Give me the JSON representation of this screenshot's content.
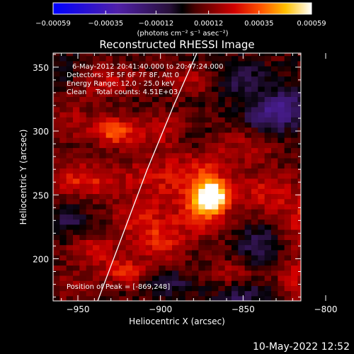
{
  "chart_data": {
    "type": "heatmap",
    "title": "Reconstructed RHESSI Image",
    "xlabel": "Heliocentric X (arcsec)",
    "ylabel": "Heliocentric Y (arcsec)",
    "xlim": [
      -965,
      -815
    ],
    "ylim": [
      167,
      361
    ],
    "xticks": [
      -950,
      -900,
      -850,
      -800
    ],
    "xtick_labels": [
      "−950",
      "−900",
      "−850",
      "−800"
    ],
    "yticks": [
      200,
      250,
      300,
      350
    ],
    "ytick_labels": [
      "200",
      "250",
      "300",
      "350"
    ],
    "colorbar": {
      "ticks": [
        -0.00059,
        -0.00035,
        -0.00012,
        0.00012,
        0.00035,
        0.00059
      ],
      "tick_labels": [
        "−0.00059",
        "−0.00035",
        "−0.00012",
        "0.00012",
        "0.00035",
        "0.00059"
      ],
      "range": [
        -0.00059,
        0.00059
      ],
      "unit_label": "(photons cm⁻² s⁻¹ asec⁻²)"
    },
    "annotations": [
      "6-May-2012 20:41:40.000 to 20:47:24.000",
      "Detectors: 3F 5F 6F 7F 8F, Att 0",
      "Energy Range: 12.0 - 25.0 keV",
      "Clean    Total counts: 4.51E+03"
    ],
    "peak": {
      "x": -869,
      "y": 248,
      "label": "Position of Peak = [-869,248]"
    },
    "limb_curve": [
      [
        -938,
        167
      ],
      [
        -924,
        215
      ],
      [
        -908,
        270
      ],
      [
        -892,
        320
      ],
      [
        -878,
        361
      ]
    ],
    "blobs": [
      {
        "x": -869,
        "y": 249,
        "amp": 0.0006,
        "sx": 6,
        "sy": 8
      },
      {
        "x": -875,
        "y": 262,
        "amp": 0.00022,
        "sx": 14,
        "sy": 18
      },
      {
        "x": -876,
        "y": 232,
        "amp": 0.00018,
        "sx": 12,
        "sy": 12
      },
      {
        "x": -928,
        "y": 300,
        "amp": 0.0003,
        "sx": 10,
        "sy": 8
      },
      {
        "x": -898,
        "y": 301,
        "amp": 0.00016,
        "sx": 12,
        "sy": 10
      },
      {
        "x": -946,
        "y": 262,
        "amp": 0.00022,
        "sx": 16,
        "sy": 10
      },
      {
        "x": -905,
        "y": 262,
        "amp": 0.00014,
        "sx": 14,
        "sy": 14
      },
      {
        "x": -913,
        "y": 228,
        "amp": 0.00018,
        "sx": 12,
        "sy": 12
      },
      {
        "x": -898,
        "y": 212,
        "amp": 0.00018,
        "sx": 10,
        "sy": 10
      },
      {
        "x": -940,
        "y": 206,
        "amp": 0.00018,
        "sx": 10,
        "sy": 8
      },
      {
        "x": -921,
        "y": 190,
        "amp": 0.00022,
        "sx": 10,
        "sy": 8
      },
      {
        "x": -835,
        "y": 253,
        "amp": 0.00018,
        "sx": 12,
        "sy": 12
      },
      {
        "x": -845,
        "y": 290,
        "amp": 0.00012,
        "sx": 14,
        "sy": 10
      },
      {
        "x": -812,
        "y": 230,
        "amp": 0.0002,
        "sx": 10,
        "sy": 16
      },
      {
        "x": -820,
        "y": 185,
        "amp": 0.00016,
        "sx": 8,
        "sy": 12
      },
      {
        "x": -858,
        "y": 190,
        "amp": 0.00012,
        "sx": 10,
        "sy": 8
      },
      {
        "x": -880,
        "y": 340,
        "amp": 0.00014,
        "sx": 14,
        "sy": 8
      },
      {
        "x": -935,
        "y": 340,
        "amp": 0.00016,
        "sx": 14,
        "sy": 10
      },
      {
        "x": -955,
        "y": 310,
        "amp": 0.00012,
        "sx": 8,
        "sy": 12
      },
      {
        "x": -955,
        "y": 180,
        "amp": 0.0001,
        "sx": 10,
        "sy": 10
      },
      {
        "x": -852,
        "y": 340,
        "amp": -0.00016,
        "sx": 12,
        "sy": 10
      },
      {
        "x": -835,
        "y": 310,
        "amp": -0.0002,
        "sx": 10,
        "sy": 10
      },
      {
        "x": -822,
        "y": 320,
        "amp": -0.00018,
        "sx": 10,
        "sy": 10
      },
      {
        "x": -840,
        "y": 210,
        "amp": -0.00016,
        "sx": 10,
        "sy": 10
      },
      {
        "x": -850,
        "y": 170,
        "amp": -0.00014,
        "sx": 12,
        "sy": 8
      },
      {
        "x": -895,
        "y": 180,
        "amp": -0.00012,
        "sx": 10,
        "sy": 8
      },
      {
        "x": -955,
        "y": 232,
        "amp": -0.00014,
        "sx": 8,
        "sy": 8
      },
      {
        "x": -882,
        "y": 295,
        "amp": -0.0001,
        "sx": 8,
        "sy": 8
      },
      {
        "x": -955,
        "y": 345,
        "amp": -8e-05,
        "sx": 10,
        "sy": 10
      }
    ],
    "pixel_size_arcsec": 4,
    "colormap": "red-temperature (blue-black-red-yellow-white)",
    "background_color": "#000000",
    "foreground_color": "#ffffff"
  },
  "timestamp": "10-May-2022 12:52"
}
